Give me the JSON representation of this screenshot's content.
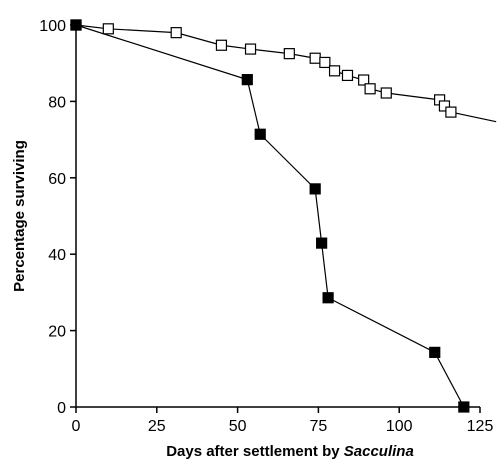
{
  "chart_data": {
    "type": "scatter",
    "xlabel": "Days after settlement by",
    "xlabel_italic": "Sacculina",
    "ylabel": "Percentage surviving",
    "xlim": [
      0,
      125
    ],
    "ylim": [
      0,
      100
    ],
    "xticks": [
      0,
      25,
      50,
      75,
      100,
      125
    ],
    "yticks": [
      0,
      20,
      40,
      60,
      80,
      100
    ],
    "grid": false,
    "series": [
      {
        "marker": "open-square",
        "color": "#000000",
        "points": [
          [
            0,
            100
          ],
          [
            10,
            99
          ],
          [
            31,
            98
          ],
          [
            45,
            94.7
          ],
          [
            54,
            93.7
          ],
          [
            66,
            92.5
          ],
          [
            74,
            91.3
          ],
          [
            77,
            90.2
          ],
          [
            80,
            88
          ],
          [
            84,
            86.8
          ],
          [
            89,
            85.6
          ],
          [
            91,
            83.3
          ],
          [
            96,
            82.2
          ],
          [
            112.5,
            80.4
          ],
          [
            114,
            78.8
          ],
          [
            116,
            77.2
          ]
        ],
        "line_extends_to": [
          130,
          74.7
        ]
      },
      {
        "marker": "filled-square",
        "color": "#000000",
        "points": [
          [
            0,
            100
          ],
          [
            53,
            85.7
          ],
          [
            57,
            71.4
          ],
          [
            74,
            57.1
          ],
          [
            76,
            42.9
          ],
          [
            78,
            28.6
          ],
          [
            111,
            14.3
          ],
          [
            120,
            0
          ]
        ]
      }
    ]
  }
}
